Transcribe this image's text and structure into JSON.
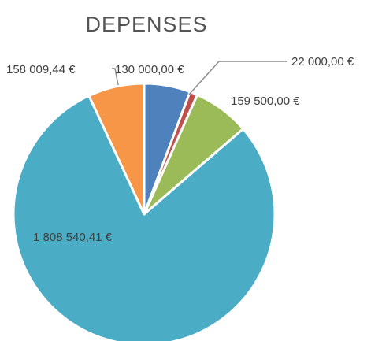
{
  "chart_data": {
    "type": "pie",
    "title": "DEPENSES",
    "values": [
      130000.0,
      22000.0,
      159500.0,
      1808540.41,
      158009.44
    ],
    "data_labels": [
      "130 000,00 €",
      "22 000,00 €",
      "159 500,00 €",
      "1 808 540,41 €",
      "158 009,44 €"
    ],
    "colors": [
      "#4f81bd",
      "#c0504d",
      "#9bbb59",
      "#4bacc6",
      "#f79646"
    ],
    "start": "12 o'clock",
    "direction": "clockwise",
    "legend": "none"
  }
}
